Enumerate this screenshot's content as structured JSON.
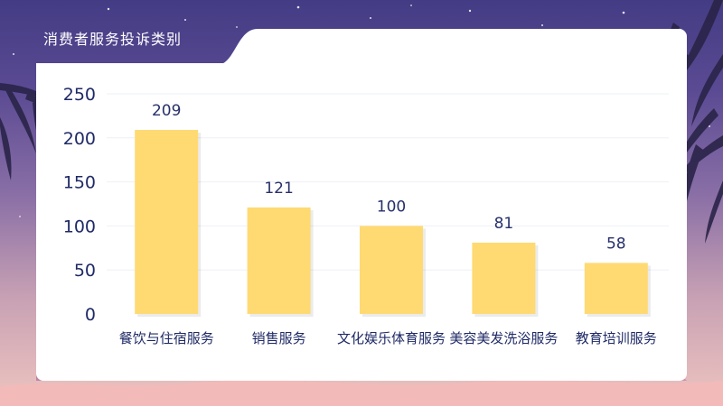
{
  "chart_data": {
    "type": "bar",
    "title": "消费者服务投诉类别",
    "categories": [
      "餐饮与住宿服务",
      "销售服务",
      "文化娱乐体育服务",
      "美容美发洗浴服务",
      "教育培训服务"
    ],
    "series": [
      {
        "values": [
          209,
          121,
          100,
          81,
          58
        ]
      }
    ],
    "ylim": [
      0,
      250
    ],
    "yticks": [
      0,
      50,
      100,
      150,
      200,
      250
    ],
    "xlabel": "",
    "ylabel": "",
    "grid": true,
    "legend": "none",
    "data_labels": true
  },
  "colors": {
    "bar": "#ffda73",
    "axis_text": "#1f2a66",
    "label_text": "#27306b",
    "gridline": "#eef0f6"
  }
}
